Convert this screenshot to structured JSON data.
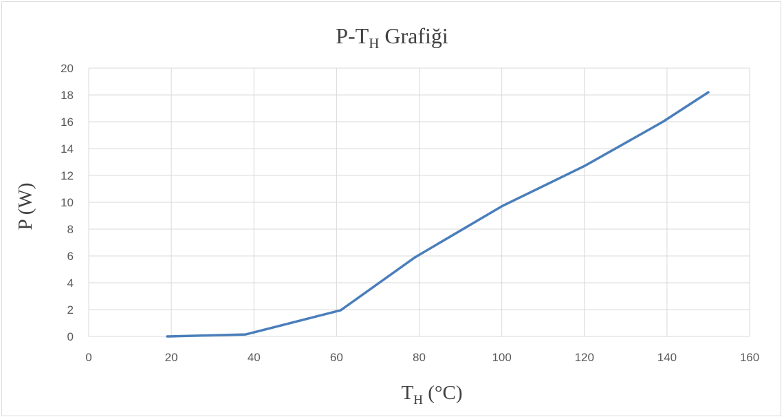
{
  "chart_data": {
    "type": "line",
    "title": {
      "main": "P-T",
      "sub": "H",
      "rest": " Grafiği"
    },
    "xlabel": {
      "main": "T",
      "sub": "H",
      "rest": " (°C)"
    },
    "ylabel": "P (W)",
    "xlim": [
      0,
      160
    ],
    "ylim": [
      0,
      20
    ],
    "xticks": [
      0,
      20,
      40,
      60,
      80,
      100,
      120,
      140,
      160
    ],
    "yticks": [
      0,
      2,
      4,
      6,
      8,
      10,
      12,
      14,
      16,
      18,
      20
    ],
    "grid": true,
    "legend": "none",
    "series": [
      {
        "color": "#4a7ebb",
        "x": [
          19,
          38,
          61,
          79,
          100,
          120,
          139,
          150
        ],
        "y": [
          0.0,
          0.15,
          1.95,
          5.9,
          9.7,
          12.7,
          16.0,
          18.2
        ]
      }
    ]
  }
}
